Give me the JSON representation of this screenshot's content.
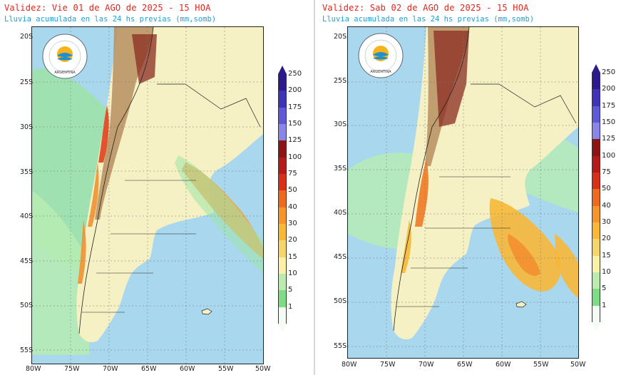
{
  "panels": [
    {
      "title": "Validez: Vie 01 de AGO de 2025 - 15 HOA",
      "subtitle": "Lluvia acumulada en las 24 hs previas (mm,somb)"
    },
    {
      "title": "Validez: Sab 02 de AGO de 2025 - 15 HOA",
      "subtitle": "Lluvia acumulada en las 24 hs previas (mm,somb)"
    }
  ],
  "logo": {
    "top_text": "SERVICIO METEOROLÓGICO NACIONAL",
    "bottom_text": "ARGENTINA",
    "icon": "smn-logo-icon"
  },
  "lat_labels": [
    "20S",
    "25S",
    "30S",
    "35S",
    "40S",
    "45S",
    "50S",
    "55S"
  ],
  "lon_labels": [
    "80W",
    "75W",
    "70W",
    "65W",
    "60W",
    "55W",
    "50W"
  ],
  "colorbar": {
    "labels": [
      "250",
      "200",
      "175",
      "150",
      "125",
      "100",
      "75",
      "50",
      "40",
      "30",
      "20",
      "15",
      "10",
      "5",
      "1"
    ],
    "colors": [
      "#2c1a8c",
      "#3f33b8",
      "#5e5ad6",
      "#8a86e8",
      "#8c1414",
      "#b41a1a",
      "#d83018",
      "#ee6a1e",
      "#f5952a",
      "#f7b838",
      "#f6d66a",
      "#fbf0a8",
      "#b9ecae",
      "#7edb86",
      "#f4fbf4"
    ]
  },
  "colors": {
    "title": "#e0261b",
    "subtitle": "#1ba2d8",
    "ocean": "#a9d7ee",
    "land": "#f6f1c4"
  }
}
